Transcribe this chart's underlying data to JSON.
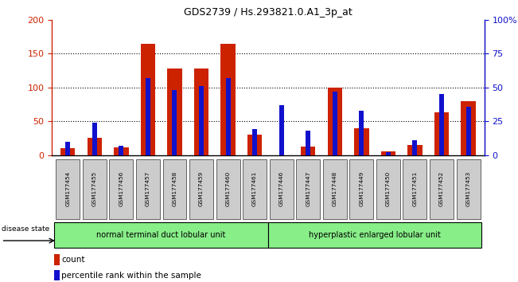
{
  "title": "GDS2739 / Hs.293821.0.A1_3p_at",
  "samples": [
    "GSM177454",
    "GSM177455",
    "GSM177456",
    "GSM177457",
    "GSM177458",
    "GSM177459",
    "GSM177460",
    "GSM177461",
    "GSM177446",
    "GSM177447",
    "GSM177448",
    "GSM177449",
    "GSM177450",
    "GSM177451",
    "GSM177452",
    "GSM177453"
  ],
  "count_values": [
    10,
    25,
    12,
    165,
    128,
    128,
    165,
    30,
    0,
    13,
    100,
    40,
    6,
    15,
    63,
    80
  ],
  "percentile_values": [
    10,
    24,
    7,
    57,
    48,
    51,
    57,
    19,
    37,
    18,
    47,
    33,
    2,
    11,
    45,
    36
  ],
  "group1_label": "normal terminal duct lobular unit",
  "group2_label": "hyperplastic enlarged lobular unit",
  "group1_count": 8,
  "group2_count": 8,
  "ylim_left": [
    0,
    200
  ],
  "ylim_right": [
    0,
    100
  ],
  "yticks_left": [
    0,
    50,
    100,
    150,
    200
  ],
  "yticks_right": [
    0,
    25,
    50,
    75,
    100
  ],
  "ytick_labels_right": [
    "0",
    "25",
    "50",
    "75",
    "100%"
  ],
  "bar_color_count": "#cc2200",
  "bar_color_percentile": "#1111cc",
  "background_color": "#ffffff",
  "group_bg_color": "#88ee88",
  "tick_label_bg": "#cccccc",
  "disease_state_label": "disease state",
  "legend_count": "count",
  "legend_percentile": "percentile rank within the sample"
}
